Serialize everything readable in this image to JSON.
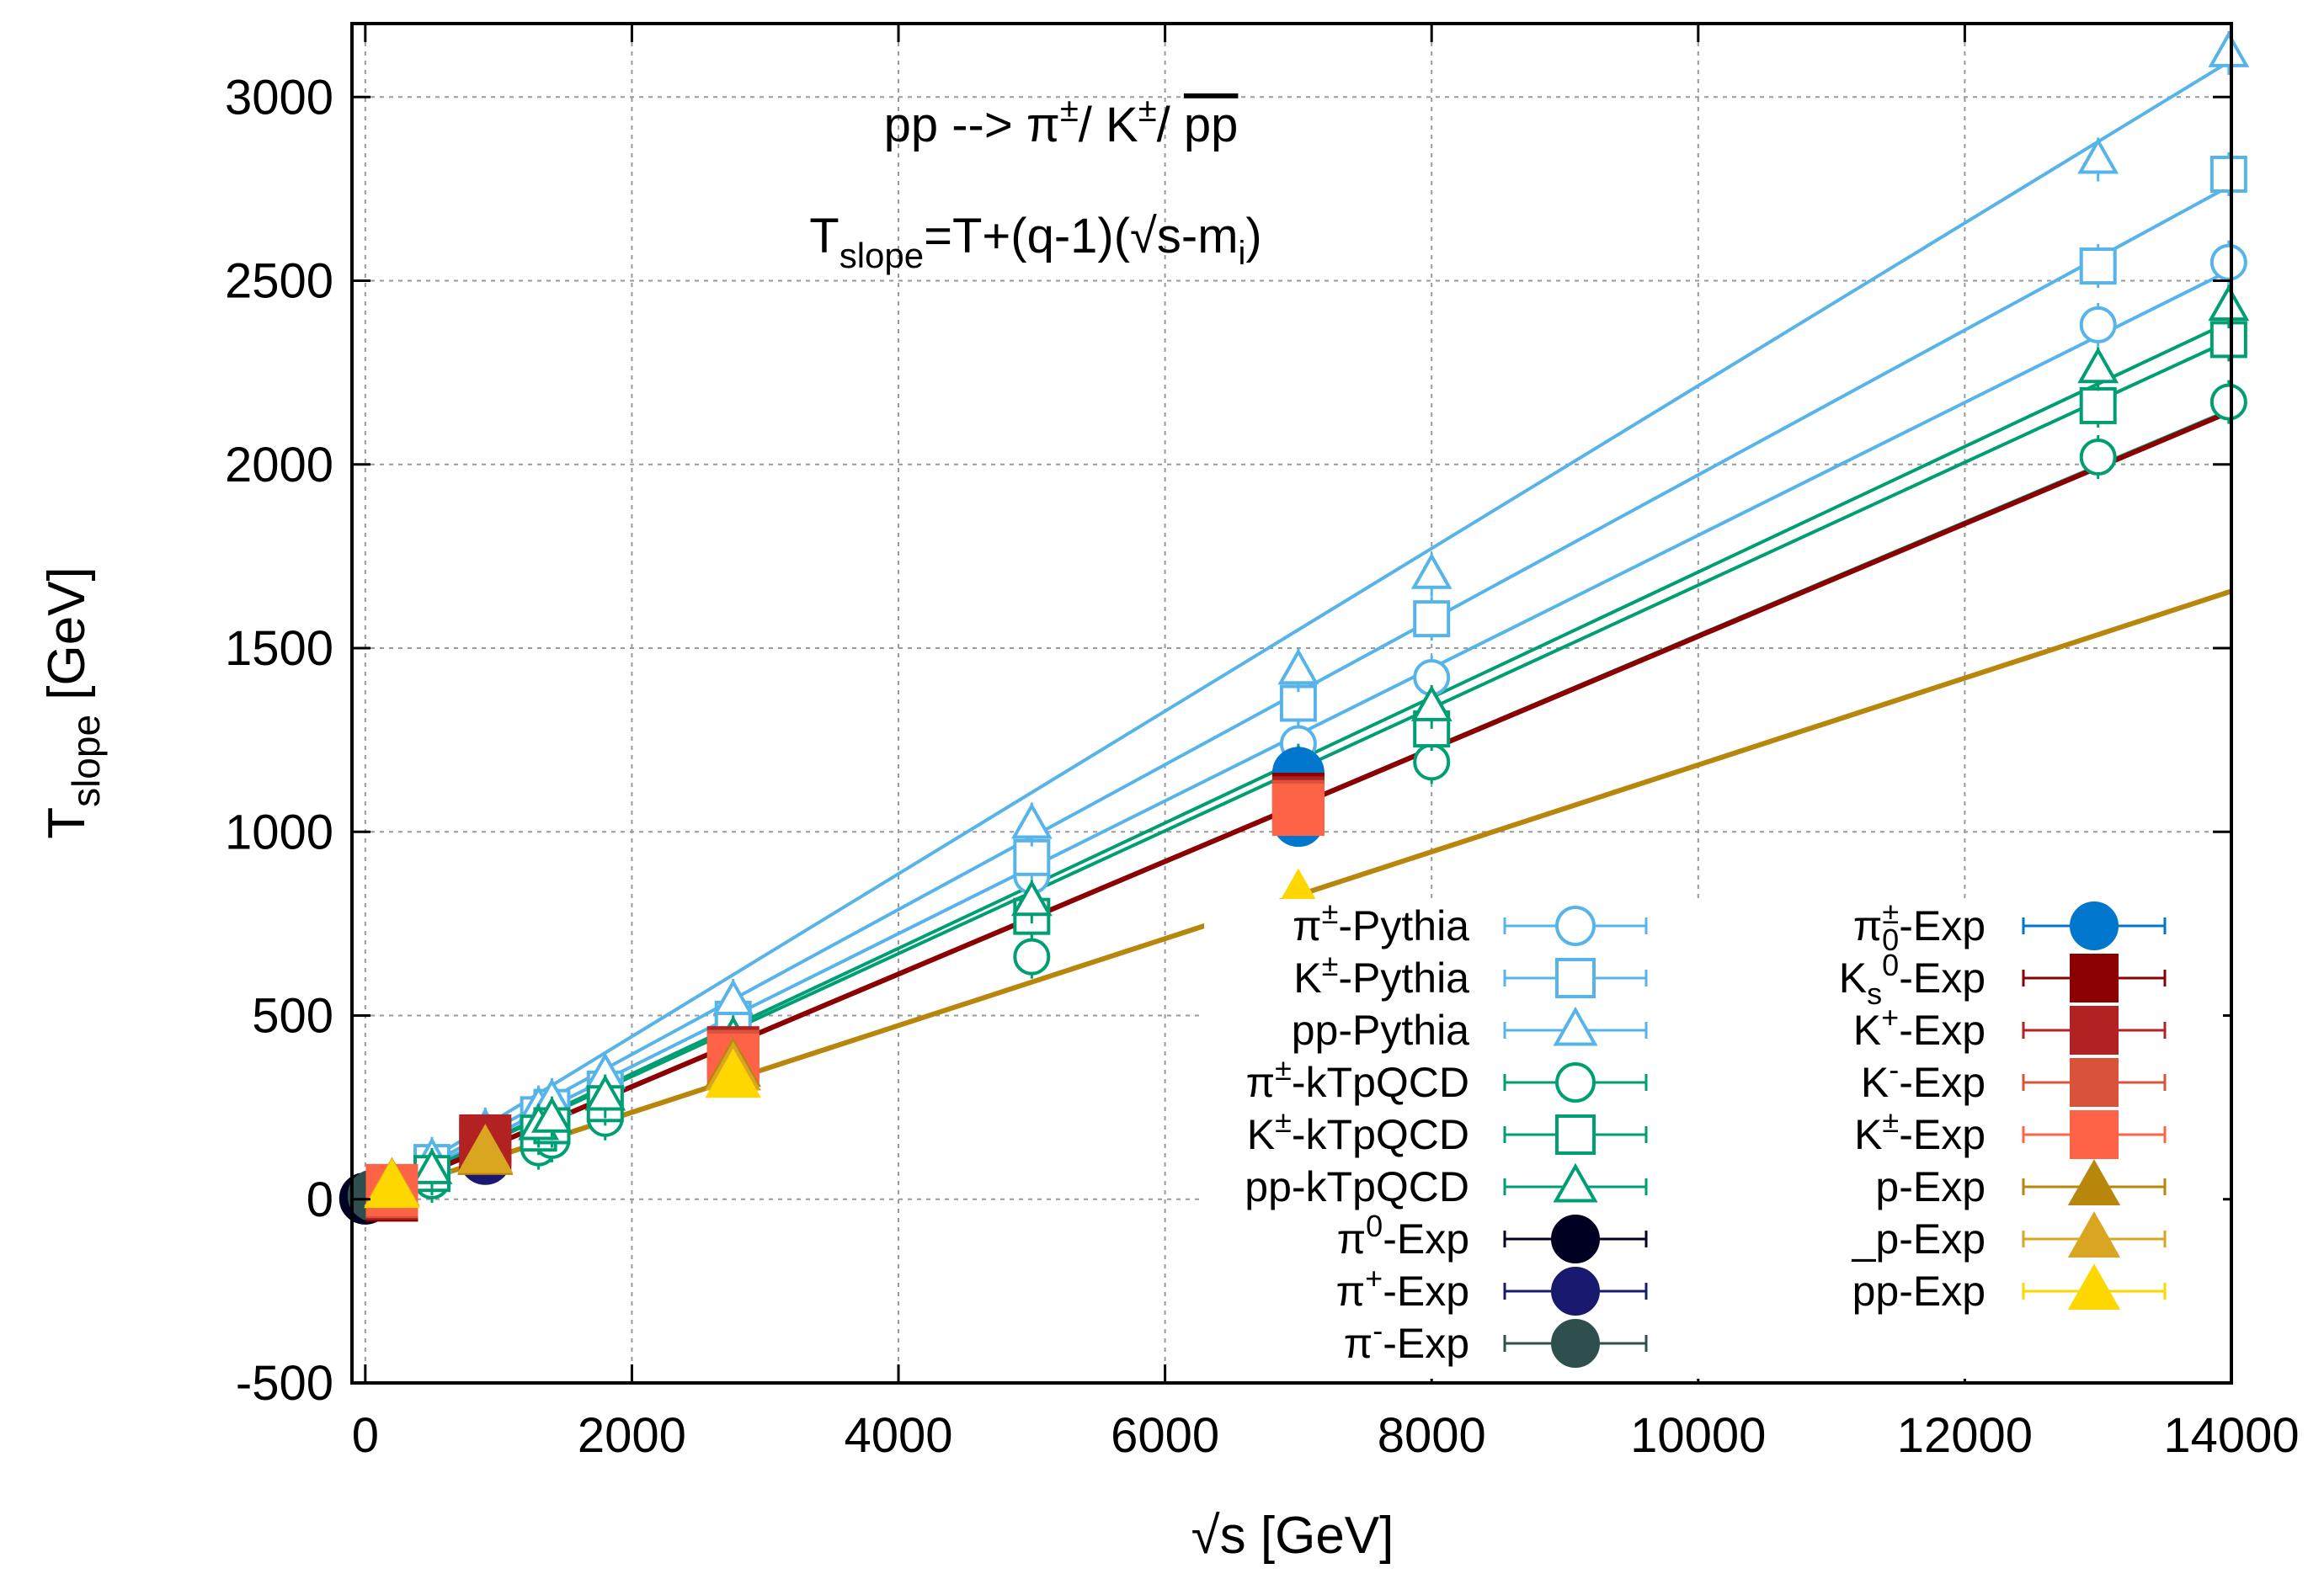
{
  "chart_data": {
    "type": "line",
    "title_lines": [
      "pp --> π±/ K±/ p̄p",
      "Tslope=T+(q-1)(√s-mi)"
    ],
    "annotation": {
      "line1": {
        "a": "pp --> π",
        "a_sup": "±",
        "b": "/ K",
        "b_sup": "±",
        "c": "/ ",
        "d": "pp"
      },
      "line2": {
        "a": "T",
        "a_sub": "slope",
        "b": "=T+(q-1)(√s-m",
        "b_sub": "i",
        "c": ")"
      }
    },
    "xlabel": "√s [GeV]",
    "ylabel": {
      "main": "T",
      "sub": "slope",
      "unit": " [GeV]"
    },
    "xlim": [
      -100,
      14000
    ],
    "ylim": [
      -500,
      3200
    ],
    "x_ticks": [
      0,
      2000,
      4000,
      6000,
      8000,
      10000,
      12000,
      14000
    ],
    "y_ticks": [
      -500,
      0,
      500,
      1000,
      1500,
      2000,
      2500,
      3000
    ],
    "x_tick_labels": [
      "0",
      "2000",
      "4000",
      "6000",
      "8000",
      "10000",
      "12000",
      "14000"
    ],
    "y_tick_labels": [
      "-500",
      "0",
      "500",
      "1000",
      "1500",
      "2000",
      "2500",
      "3000"
    ],
    "grid": true,
    "legend_placement": "bottom-right, two columns",
    "fits": [
      {
        "name": "pp-Pythia fit",
        "color": "#56B4E9",
        "x": [
          0,
          14000
        ],
        "y": [
          0,
          3100
        ]
      },
      {
        "name": "K±-Pythia fit",
        "color": "#56B4E9",
        "x": [
          0,
          14000
        ],
        "y": [
          0,
          2760
        ]
      },
      {
        "name": "π±-Pythia fit",
        "color": "#56B4E9",
        "x": [
          0,
          14000
        ],
        "y": [
          0,
          2530
        ]
      },
      {
        "name": "pp-kTpQCD fit",
        "color": "#009E73",
        "x": [
          0,
          14000
        ],
        "y": [
          0,
          2390
        ]
      },
      {
        "name": "K±-kTpQCD fit",
        "color": "#009E73",
        "x": [
          0,
          14000
        ],
        "y": [
          0,
          2340
        ]
      },
      {
        "name": "π±-kTpQCD fit",
        "color": "#009E73",
        "x": [
          0,
          14000
        ],
        "y": [
          0,
          2150
        ]
      },
      {
        "name": "Exp fit (π, K)",
        "color": "#8B0000",
        "x": [
          0,
          14000
        ],
        "y": [
          0,
          2145
        ]
      },
      {
        "name": "Exp fit (p)",
        "color": "#B8860B",
        "x": [
          0,
          14000
        ],
        "y": [
          0,
          1655
        ]
      }
    ],
    "series": [
      {
        "name": "π±-Pythia",
        "color": "#56B4E9",
        "marker": "circle-open",
        "x": [
          200,
          500,
          900,
          1300,
          1400,
          1800,
          2760,
          5000,
          7000,
          8000,
          13000,
          13980
        ],
        "y": [
          40,
          90,
          160,
          210,
          230,
          290,
          440,
          880,
          1240,
          1420,
          2380,
          2550
        ]
      },
      {
        "name": "K±-Pythia",
        "color": "#56B4E9",
        "marker": "square-open",
        "x": [
          200,
          500,
          900,
          1300,
          1400,
          1800,
          2760,
          5000,
          7000,
          8000,
          13000,
          13980
        ],
        "y": [
          45,
          100,
          180,
          230,
          250,
          300,
          490,
          930,
          1350,
          1580,
          2540,
          2790
        ]
      },
      {
        "name": "pp-Pythia",
        "color": "#56B4E9",
        "marker": "triangle-open",
        "x": [
          200,
          500,
          900,
          1300,
          1400,
          1800,
          2760,
          5000,
          7000,
          8000,
          13000,
          13980
        ],
        "y": [
          50,
          110,
          190,
          250,
          270,
          340,
          540,
          1020,
          1440,
          1700,
          2830,
          3120
        ]
      },
      {
        "name": "π±-kTpQCD",
        "color": "#009E73",
        "marker": "circle-open",
        "x": [
          200,
          500,
          900,
          1300,
          1400,
          1800,
          2760,
          5000,
          7000,
          8000,
          13000,
          13980
        ],
        "y": [
          30,
          50,
          110,
          140,
          160,
          220,
          380,
          660,
          1080,
          1190,
          2020,
          2170
        ]
      },
      {
        "name": "K±-kTpQCD",
        "color": "#009E73",
        "marker": "square-open",
        "x": [
          200,
          500,
          900,
          1300,
          1400,
          1800,
          2760,
          5000,
          7000,
          8000,
          13000,
          13980
        ],
        "y": [
          40,
          70,
          140,
          180,
          200,
          260,
          420,
          770,
          1140,
          1280,
          2160,
          2340
        ]
      },
      {
        "name": "pp-kTpQCD",
        "color": "#009E73",
        "marker": "triangle-open",
        "x": [
          200,
          500,
          900,
          1300,
          1400,
          1800,
          2760,
          5000,
          7000,
          8000,
          13000,
          13980
        ],
        "y": [
          45,
          80,
          150,
          200,
          220,
          280,
          440,
          810,
          1180,
          1340,
          2260,
          2430
        ]
      },
      {
        "name": "π0-Exp",
        "color": "#000022",
        "marker": "circle-filled",
        "x": [
          0,
          200
        ],
        "y": [
          2,
          20
        ]
      },
      {
        "name": "π+-Exp",
        "color": "#191970",
        "marker": "circle-filled",
        "x": [
          63,
          900
        ],
        "y": [
          10,
          110
        ]
      },
      {
        "name": "π--Exp",
        "color": "#2F4F4F",
        "marker": "circle-filled",
        "x": [
          63,
          200
        ],
        "y": [
          10,
          20
        ]
      },
      {
        "name": "π±0-Exp",
        "color": "#0077CC",
        "marker": "circle-filled",
        "x": [
          7000,
          7000
        ],
        "y": [
          1030,
          1160
        ]
      },
      {
        "name": "Ks0-Exp",
        "color": "#8B0000",
        "marker": "square-filled",
        "x": [
          200,
          900,
          7000
        ],
        "y": [
          10,
          150,
          1090
        ]
      },
      {
        "name": "K+-Exp",
        "color": "#B22222",
        "marker": "square-filled",
        "x": [
          200,
          900,
          2760,
          7000
        ],
        "y": [
          15,
          160,
          400,
          1080
        ]
      },
      {
        "name": "K--Exp",
        "color": "#D9533A",
        "marker": "square-filled",
        "x": [
          200,
          2760,
          7000
        ],
        "y": [
          20,
          390,
          1070
        ]
      },
      {
        "name": "K±-Exp",
        "color": "#FF6347",
        "marker": "square-filled",
        "x": [
          200,
          2760,
          7000
        ],
        "y": [
          25,
          380,
          1060
        ]
      },
      {
        "name": "p-Exp",
        "color": "#B8860B",
        "marker": "triangle-filled",
        "x": [
          200,
          900,
          2760
        ],
        "y": [
          30,
          120,
          360
        ]
      },
      {
        "name": "_p-Exp",
        "color": "#DAA520",
        "marker": "triangle-filled",
        "x": [
          200,
          900,
          2760
        ],
        "y": [
          35,
          125,
          350
        ]
      },
      {
        "name": "pp-Exp",
        "color": "#FFD700",
        "marker": "triangle-filled",
        "x": [
          200,
          2760,
          7000
        ],
        "y": [
          30,
          330,
          820
        ]
      }
    ],
    "legend": {
      "left": [
        {
          "pre": "π",
          "sup": "±",
          "sub": "",
          "post": "-Pythia",
          "color": "#56B4E9",
          "marker": "circle-open"
        },
        {
          "pre": "K",
          "sup": "±",
          "sub": "",
          "post": "-Pythia",
          "color": "#56B4E9",
          "marker": "square-open"
        },
        {
          "pre": "pp",
          "sup": "",
          "sub": "",
          "post": "-Pythia",
          "color": "#56B4E9",
          "marker": "triangle-open"
        },
        {
          "pre": "π",
          "sup": "±",
          "sub": "",
          "post": "-kTpQCD",
          "color": "#009E73",
          "marker": "circle-open"
        },
        {
          "pre": "K",
          "sup": "±",
          "sub": "",
          "post": "-kTpQCD",
          "color": "#009E73",
          "marker": "square-open"
        },
        {
          "pre": "pp",
          "sup": "",
          "sub": "",
          "post": "-kTpQCD",
          "color": "#009E73",
          "marker": "triangle-open"
        },
        {
          "pre": "π",
          "sup": "0",
          "sub": "",
          "post": "-Exp",
          "color": "#000022",
          "marker": "circle-filled"
        },
        {
          "pre": "π",
          "sup": "+",
          "sub": "",
          "post": "-Exp",
          "color": "#191970",
          "marker": "circle-filled"
        },
        {
          "pre": "π",
          "sup": "-",
          "sub": "",
          "post": "-Exp",
          "color": "#2F4F4F",
          "marker": "circle-filled"
        }
      ],
      "right": [
        {
          "pre": "π",
          "sup": "±",
          "sub": "0",
          "post": "-Exp",
          "color": "#0077CC",
          "marker": "circle-filled"
        },
        {
          "pre": "K",
          "sup": "",
          "sub": "s",
          "sup2": "0",
          "post": "-Exp",
          "color": "#8B0000",
          "marker": "square-filled"
        },
        {
          "pre": "K",
          "sup": "+",
          "sub": "",
          "post": "-Exp",
          "color": "#B22222",
          "marker": "square-filled"
        },
        {
          "pre": "K",
          "sup": "-",
          "sub": "",
          "post": "-Exp",
          "color": "#D9533A",
          "marker": "square-filled"
        },
        {
          "pre": "K",
          "sup": "±",
          "sub": "",
          "post": "-Exp",
          "color": "#FF6347",
          "marker": "square-filled"
        },
        {
          "pre": "p",
          "sup": "",
          "sub": "",
          "post": "-Exp",
          "color": "#B8860B",
          "marker": "triangle-filled"
        },
        {
          "pre": "_p",
          "sup": "",
          "sub": "",
          "post": "-Exp",
          "color": "#DAA520",
          "marker": "triangle-filled"
        },
        {
          "pre": "pp",
          "sup": "",
          "sub": "",
          "post": "-Exp",
          "color": "#FFD700",
          "marker": "triangle-filled"
        }
      ]
    }
  }
}
